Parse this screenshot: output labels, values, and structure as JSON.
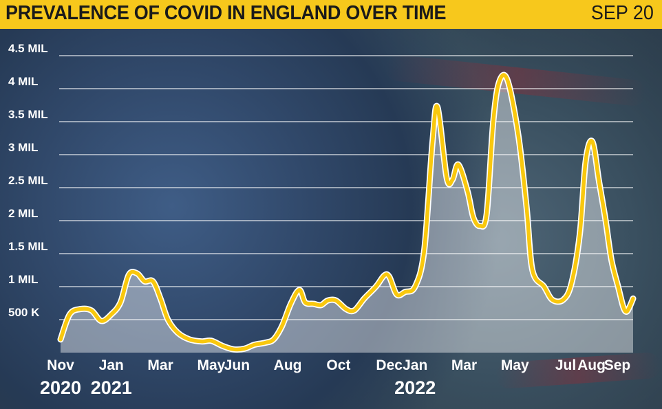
{
  "header": {
    "title": "PREVALENCE OF COVID IN ENGLAND OVER TIME",
    "date": "SEP 20"
  },
  "colors": {
    "header_bg": "#f7c81c",
    "line": "#f9c80e",
    "area": "#ffffff",
    "grid": "#ffffff",
    "text": "#ffffff"
  },
  "chart_data": {
    "type": "area",
    "title": "PREVALENCE OF COVID IN ENGLAND OVER TIME",
    "xlabel": "",
    "ylabel": "",
    "ylim": [
      0,
      4500000
    ],
    "grid": true,
    "y_ticks": [
      {
        "value": 500000,
        "label": "500 K"
      },
      {
        "value": 1000000,
        "label": "1 MIL"
      },
      {
        "value": 1500000,
        "label": "1.5 MIL"
      },
      {
        "value": 2000000,
        "label": "2 MIL"
      },
      {
        "value": 2500000,
        "label": "2.5 MIL"
      },
      {
        "value": 3000000,
        "label": "3 MIL"
      },
      {
        "value": 3500000,
        "label": "3.5 MIL"
      },
      {
        "value": 4000000,
        "label": "4 MIL"
      },
      {
        "value": 4500000,
        "label": "4.5 MIL"
      }
    ],
    "x_ticks": [
      {
        "label": "Nov",
        "x": "2020-11"
      },
      {
        "label": "Jan",
        "x": "2021-01"
      },
      {
        "label": "Mar",
        "x": "2021-03"
      },
      {
        "label": "May",
        "x": "2021-05"
      },
      {
        "label": "Jun",
        "x": "2021-06"
      },
      {
        "label": "Aug",
        "x": "2021-08"
      },
      {
        "label": "Oct",
        "x": "2021-10"
      },
      {
        "label": "Dec",
        "x": "2021-12"
      },
      {
        "label": "Jan",
        "x": "2022-01"
      },
      {
        "label": "Mar",
        "x": "2022-03"
      },
      {
        "label": "May",
        "x": "2022-05"
      },
      {
        "label": "Jul",
        "x": "2022-07"
      },
      {
        "label": "Aug",
        "x": "2022-08"
      },
      {
        "label": "Sep",
        "x": "2022-09"
      }
    ],
    "year_labels": [
      {
        "label": "2020",
        "x": "2020-11"
      },
      {
        "label": "2021",
        "x": "2021-01"
      },
      {
        "label": "2022",
        "x": "2022-01"
      }
    ],
    "series": [
      {
        "points": [
          [
            "2020-11-01",
            200000
          ],
          [
            "2020-11-12",
            580000
          ],
          [
            "2020-11-25",
            660000
          ],
          [
            "2020-12-08",
            640000
          ],
          [
            "2020-12-20",
            480000
          ],
          [
            "2021-01-01",
            580000
          ],
          [
            "2021-01-12",
            760000
          ],
          [
            "2021-01-22",
            1180000
          ],
          [
            "2021-02-01",
            1200000
          ],
          [
            "2021-02-10",
            1080000
          ],
          [
            "2021-02-20",
            1080000
          ],
          [
            "2021-03-01",
            820000
          ],
          [
            "2021-03-10",
            500000
          ],
          [
            "2021-03-22",
            300000
          ],
          [
            "2021-04-05",
            200000
          ],
          [
            "2021-04-20",
            170000
          ],
          [
            "2021-05-01",
            180000
          ],
          [
            "2021-05-15",
            100000
          ],
          [
            "2021-05-28",
            50000
          ],
          [
            "2021-06-10",
            60000
          ],
          [
            "2021-06-22",
            120000
          ],
          [
            "2021-07-05",
            150000
          ],
          [
            "2021-07-15",
            200000
          ],
          [
            "2021-07-25",
            400000
          ],
          [
            "2021-08-05",
            750000
          ],
          [
            "2021-08-15",
            950000
          ],
          [
            "2021-08-22",
            760000
          ],
          [
            "2021-09-01",
            740000
          ],
          [
            "2021-09-10",
            720000
          ],
          [
            "2021-09-18",
            790000
          ],
          [
            "2021-09-28",
            790000
          ],
          [
            "2021-10-10",
            660000
          ],
          [
            "2021-10-20",
            640000
          ],
          [
            "2021-11-01",
            820000
          ],
          [
            "2021-11-15",
            1000000
          ],
          [
            "2021-11-25",
            1170000
          ],
          [
            "2021-12-01",
            1150000
          ],
          [
            "2021-12-10",
            880000
          ],
          [
            "2021-12-20",
            920000
          ],
          [
            "2022-01-01",
            1000000
          ],
          [
            "2022-01-12",
            1550000
          ],
          [
            "2022-01-22",
            3200000
          ],
          [
            "2022-01-28",
            3720000
          ],
          [
            "2022-02-08",
            2650000
          ],
          [
            "2022-02-15",
            2620000
          ],
          [
            "2022-02-22",
            2850000
          ],
          [
            "2022-03-05",
            2450000
          ],
          [
            "2022-03-12",
            2050000
          ],
          [
            "2022-03-20",
            1920000
          ],
          [
            "2022-03-28",
            2100000
          ],
          [
            "2022-04-05",
            3500000
          ],
          [
            "2022-04-12",
            4100000
          ],
          [
            "2022-04-22",
            4130000
          ],
          [
            "2022-05-05",
            3300000
          ],
          [
            "2022-05-15",
            2200000
          ],
          [
            "2022-05-22",
            1250000
          ],
          [
            "2022-06-05",
            1000000
          ],
          [
            "2022-06-15",
            800000
          ],
          [
            "2022-06-28",
            800000
          ],
          [
            "2022-07-08",
            1050000
          ],
          [
            "2022-07-18",
            1800000
          ],
          [
            "2022-07-25",
            2900000
          ],
          [
            "2022-08-02",
            3200000
          ],
          [
            "2022-08-10",
            2600000
          ],
          [
            "2022-08-18",
            2000000
          ],
          [
            "2022-08-25",
            1400000
          ],
          [
            "2022-09-02",
            1000000
          ],
          [
            "2022-09-08",
            700000
          ],
          [
            "2022-09-12",
            620000
          ],
          [
            "2022-09-16",
            700000
          ],
          [
            "2022-09-20",
            820000
          ]
        ]
      }
    ]
  }
}
